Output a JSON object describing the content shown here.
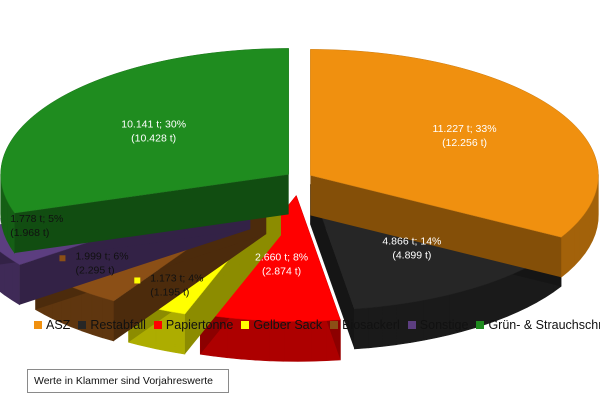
{
  "chart_data": {
    "type": "pie",
    "variant": "3d-exploded",
    "title": "",
    "unit": "t",
    "slices": [
      {
        "name": "ASZ",
        "value": 11.227,
        "percent": 33,
        "previous": 12.256,
        "label_line1": "11.227 t; 33%",
        "label_line2": "(12.256 t)",
        "color": "#F0900F"
      },
      {
        "name": "Restabfall",
        "value": 4.866,
        "percent": 14,
        "previous": 4.899,
        "label_line1": "4.866 t; 14%",
        "label_line2": "(4.899 t)",
        "color": "#262626"
      },
      {
        "name": "Papiertonne",
        "value": 2.66,
        "percent": 8,
        "previous": 2.874,
        "label_line1": "2.660 t; 8%",
        "label_line2": "(2.874 t)",
        "color": "#FF0000"
      },
      {
        "name": "Gelber Sack",
        "value": 1.173,
        "percent": 4,
        "previous": 1.195,
        "label_line1": "1.173 t; 4%",
        "label_line2": "(1.195 t)",
        "color": "#FFFF00"
      },
      {
        "name": "Biosackerl",
        "value": 1.999,
        "percent": 6,
        "previous": 2.295,
        "label_line1": "1.999 t; 6%",
        "label_line2": "(2.295 t)",
        "color": "#8B4F16"
      },
      {
        "name": "Sonstige",
        "value": 1.778,
        "percent": 5,
        "previous": 1.968,
        "label_line1": "1.778 t; 5%",
        "label_line2": "(1.968 t)",
        "color": "#5C3E80"
      },
      {
        "name": "Grün- & Strauchschnitt",
        "value": 10.141,
        "percent": 30,
        "previous": 10.428,
        "label_line1": "10.141 t; 30%",
        "label_line2": "(10.428 t)",
        "color": "#1F8C1F"
      }
    ],
    "legend_position": "bottom",
    "note": "Werte in Klammer sind Vorjahreswerte"
  }
}
